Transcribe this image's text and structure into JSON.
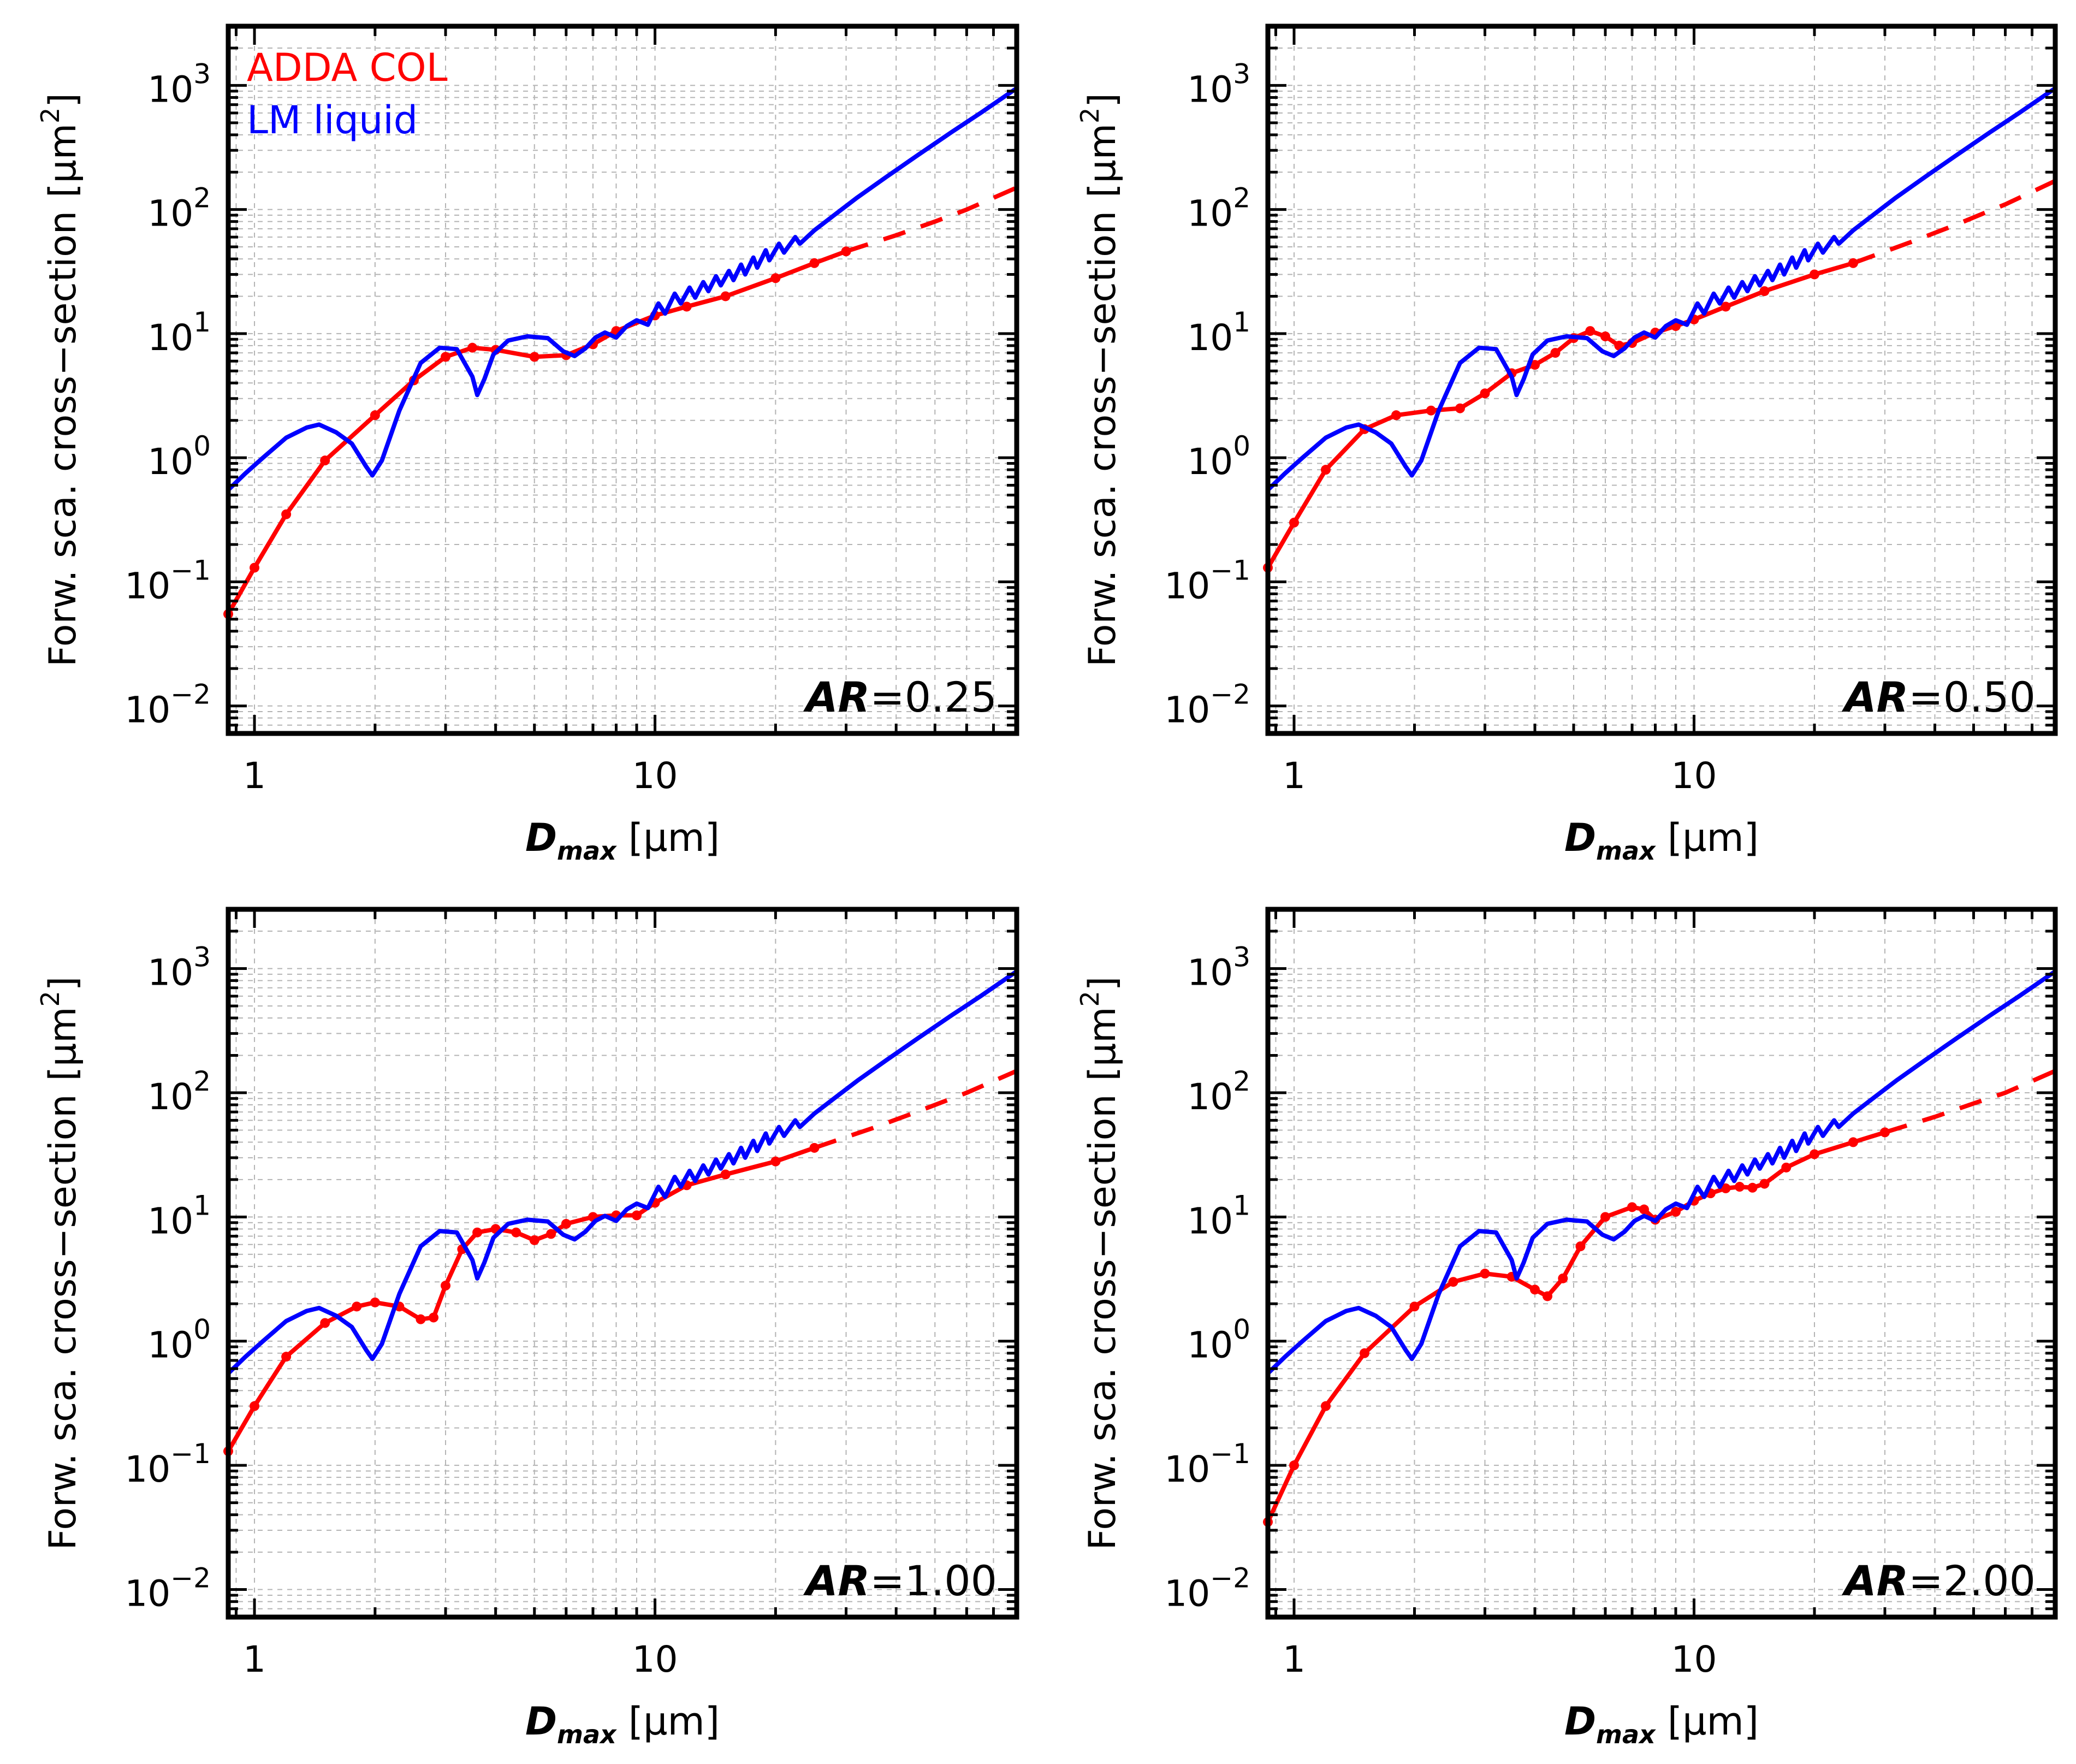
{
  "figure": {
    "legend": [
      {
        "label": "ADDA COL",
        "color": "#ff0000"
      },
      {
        "label": "LM liquid",
        "color": "#0000ff"
      }
    ],
    "ylabel": "Forw. sca. cross−section",
    "ylabel_unit_open": "[",
    "ylabel_unit": "μm",
    "ylabel_unit_exp": "2",
    "ylabel_unit_close": "]",
    "xlabel_var": "D",
    "xlabel_sub": "max",
    "xlabel_unit": "[μm]",
    "ar_prefix": "AR",
    "colors": {
      "adda": "#ff0000",
      "lm": "#0000ff",
      "grid": "#b4b4b4",
      "axis": "#000000"
    }
  },
  "chart_data": [
    {
      "type": "line",
      "panel_label": "AR=0.25",
      "ar_value": "=0.25",
      "xscale": "log",
      "yscale": "log",
      "xlim": [
        0.86,
        80
      ],
      "ylim": [
        0.006,
        3000
      ],
      "xticks": [
        {
          "value": 1,
          "label": "1"
        },
        {
          "value": 10,
          "label": "10"
        }
      ],
      "yticks": [
        {
          "value": 0.01,
          "base": "10",
          "exp": "−2"
        },
        {
          "value": 0.1,
          "base": "10",
          "exp": "−1"
        },
        {
          "value": 1,
          "base": "10",
          "exp": "0"
        },
        {
          "value": 10,
          "base": "10",
          "exp": "1"
        },
        {
          "value": 100,
          "base": "10",
          "exp": "2"
        },
        {
          "value": 1000,
          "base": "10",
          "exp": "3"
        }
      ],
      "grid": true,
      "legend_position": "top-left",
      "series": [
        {
          "name": "ADDA COL",
          "style": "solid-with-markers",
          "x": [
            0.86,
            1.0,
            1.2,
            1.5,
            2.0,
            2.5,
            3.0,
            3.5,
            4.0,
            5.0,
            6.0,
            7.0,
            8.0,
            10,
            12,
            15,
            20,
            25,
            30
          ],
          "y": [
            0.055,
            0.13,
            0.35,
            0.95,
            2.2,
            4.2,
            6.5,
            7.7,
            7.4,
            6.5,
            6.7,
            8.2,
            10.5,
            14,
            16.5,
            20,
            28,
            37,
            46
          ]
        },
        {
          "name": "ADDA COL (extrapolated)",
          "style": "dashed",
          "x": [
            30,
            40,
            50,
            60,
            80
          ],
          "y": [
            46,
            62,
            80,
            100,
            150
          ]
        },
        {
          "name": "LM liquid",
          "style": "solid",
          "x": [
            0.86,
            0.95,
            1.05,
            1.2,
            1.35,
            1.45,
            1.6,
            1.75,
            1.9,
            1.97,
            2.08,
            2.3,
            2.6,
            2.9,
            3.2,
            3.5,
            3.6,
            3.75,
            3.95,
            4.3,
            4.8,
            5.4,
            5.9,
            6.3,
            6.7,
            7.1,
            7.5,
            8.0,
            8.5,
            9.0,
            9.6,
            10.2,
            10.6,
            11.2,
            11.6,
            12.2,
            12.6,
            13.2,
            13.6,
            14.2,
            14.6,
            15.3,
            15.7,
            16.4,
            16.8,
            17.6,
            18.0,
            18.9,
            19.3,
            20.4,
            21,
            22.4,
            23,
            25,
            28,
            32,
            38,
            45,
            55,
            65,
            80
          ],
          "y": [
            0.55,
            0.75,
            1.0,
            1.45,
            1.75,
            1.85,
            1.6,
            1.3,
            0.85,
            0.72,
            0.95,
            2.4,
            5.8,
            7.7,
            7.5,
            4.5,
            3.2,
            4.3,
            6.8,
            8.8,
            9.5,
            9.2,
            7.2,
            6.6,
            7.6,
            9.3,
            10.2,
            9.3,
            11.5,
            12.8,
            11.8,
            17.5,
            14.5,
            21,
            17.5,
            23.5,
            19.5,
            26,
            22,
            29,
            24.5,
            32,
            27,
            36,
            30,
            41,
            34,
            47,
            39,
            53,
            45,
            60,
            53,
            68,
            90,
            125,
            185,
            270,
            420,
            600,
            950
          ]
        }
      ]
    },
    {
      "type": "line",
      "panel_label": "AR=0.50",
      "ar_value": "=0.50",
      "xscale": "log",
      "yscale": "log",
      "xlim": [
        0.86,
        80
      ],
      "ylim": [
        0.006,
        3000
      ],
      "xticks": [
        {
          "value": 1,
          "label": "1"
        },
        {
          "value": 10,
          "label": "10"
        }
      ],
      "yticks": [
        {
          "value": 0.01,
          "base": "10",
          "exp": "−2"
        },
        {
          "value": 0.1,
          "base": "10",
          "exp": "−1"
        },
        {
          "value": 1,
          "base": "10",
          "exp": "0"
        },
        {
          "value": 10,
          "base": "10",
          "exp": "1"
        },
        {
          "value": 100,
          "base": "10",
          "exp": "2"
        },
        {
          "value": 1000,
          "base": "10",
          "exp": "3"
        }
      ],
      "grid": true,
      "legend_position": "none",
      "series": [
        {
          "name": "ADDA COL",
          "style": "solid-with-markers",
          "x": [
            0.86,
            1.0,
            1.2,
            1.5,
            1.8,
            2.2,
            2.6,
            3.0,
            3.5,
            4.0,
            4.5,
            5.0,
            5.5,
            6.0,
            6.5,
            7.0,
            8.0,
            9.0,
            10,
            12,
            15,
            20,
            25
          ],
          "y": [
            0.13,
            0.3,
            0.8,
            1.7,
            2.2,
            2.4,
            2.5,
            3.3,
            4.8,
            5.6,
            7.0,
            9.2,
            10.5,
            9.5,
            8.0,
            8.4,
            10.2,
            11.5,
            13,
            16.5,
            22,
            30,
            37
          ]
        },
        {
          "name": "ADDA COL (extrapolated)",
          "style": "dashed",
          "x": [
            25,
            35,
            45,
            60,
            80
          ],
          "y": [
            37,
            55,
            75,
            110,
            170
          ]
        },
        {
          "name": "LM liquid",
          "style": "solid",
          "x": [
            0.86,
            0.95,
            1.05,
            1.2,
            1.35,
            1.45,
            1.6,
            1.75,
            1.9,
            1.97,
            2.08,
            2.3,
            2.6,
            2.9,
            3.2,
            3.5,
            3.6,
            3.75,
            3.95,
            4.3,
            4.8,
            5.4,
            5.9,
            6.3,
            6.7,
            7.1,
            7.5,
            8.0,
            8.5,
            9.0,
            9.6,
            10.2,
            10.6,
            11.2,
            11.6,
            12.2,
            12.6,
            13.2,
            13.6,
            14.2,
            14.6,
            15.3,
            15.7,
            16.4,
            16.8,
            17.6,
            18.0,
            18.9,
            19.3,
            20.4,
            21,
            22.4,
            23,
            25,
            28,
            32,
            38,
            45,
            55,
            65,
            80
          ],
          "y": [
            0.55,
            0.75,
            1.0,
            1.45,
            1.75,
            1.85,
            1.6,
            1.3,
            0.85,
            0.72,
            0.95,
            2.4,
            5.8,
            7.7,
            7.5,
            4.5,
            3.2,
            4.3,
            6.8,
            8.8,
            9.5,
            9.2,
            7.2,
            6.6,
            7.6,
            9.3,
            10.2,
            9.3,
            11.5,
            12.8,
            11.8,
            17.5,
            14.5,
            21,
            17.5,
            23.5,
            19.5,
            26,
            22,
            29,
            24.5,
            32,
            27,
            36,
            30,
            41,
            34,
            47,
            39,
            53,
            45,
            60,
            53,
            68,
            90,
            125,
            185,
            270,
            420,
            600,
            950
          ]
        }
      ]
    },
    {
      "type": "line",
      "panel_label": "AR=1.00",
      "ar_value": "=1.00",
      "xscale": "log",
      "yscale": "log",
      "xlim": [
        0.86,
        80
      ],
      "ylim": [
        0.006,
        3000
      ],
      "xticks": [
        {
          "value": 1,
          "label": "1"
        },
        {
          "value": 10,
          "label": "10"
        }
      ],
      "yticks": [
        {
          "value": 0.01,
          "base": "10",
          "exp": "−2"
        },
        {
          "value": 0.1,
          "base": "10",
          "exp": "−1"
        },
        {
          "value": 1,
          "base": "10",
          "exp": "0"
        },
        {
          "value": 10,
          "base": "10",
          "exp": "1"
        },
        {
          "value": 100,
          "base": "10",
          "exp": "2"
        },
        {
          "value": 1000,
          "base": "10",
          "exp": "3"
        }
      ],
      "grid": true,
      "legend_position": "none",
      "series": [
        {
          "name": "ADDA COL",
          "style": "solid-with-markers",
          "x": [
            0.86,
            1.0,
            1.2,
            1.5,
            1.8,
            2.0,
            2.3,
            2.6,
            2.8,
            3.0,
            3.3,
            3.6,
            4.0,
            4.5,
            5.0,
            5.5,
            6.0,
            7.0,
            8.0,
            9.0,
            10,
            12,
            15,
            20,
            25
          ],
          "y": [
            0.13,
            0.3,
            0.75,
            1.4,
            1.9,
            2.05,
            1.9,
            1.5,
            1.55,
            2.8,
            5.5,
            7.5,
            8.0,
            7.5,
            6.5,
            7.3,
            8.8,
            10,
            10.3,
            10.3,
            13,
            18,
            22,
            28,
            36
          ]
        },
        {
          "name": "ADDA COL (extrapolated)",
          "style": "dashed",
          "x": [
            25,
            35,
            45,
            60,
            80
          ],
          "y": [
            36,
            52,
            70,
            100,
            150
          ]
        },
        {
          "name": "LM liquid",
          "style": "solid",
          "x": [
            0.86,
            0.95,
            1.05,
            1.2,
            1.35,
            1.45,
            1.6,
            1.75,
            1.9,
            1.97,
            2.08,
            2.3,
            2.6,
            2.9,
            3.2,
            3.5,
            3.6,
            3.75,
            3.95,
            4.3,
            4.8,
            5.4,
            5.9,
            6.3,
            6.7,
            7.1,
            7.5,
            8.0,
            8.5,
            9.0,
            9.6,
            10.2,
            10.6,
            11.2,
            11.6,
            12.2,
            12.6,
            13.2,
            13.6,
            14.2,
            14.6,
            15.3,
            15.7,
            16.4,
            16.8,
            17.6,
            18.0,
            18.9,
            19.3,
            20.4,
            21,
            22.4,
            23,
            25,
            28,
            32,
            38,
            45,
            55,
            65,
            80
          ],
          "y": [
            0.55,
            0.75,
            1.0,
            1.45,
            1.75,
            1.85,
            1.6,
            1.3,
            0.85,
            0.72,
            0.95,
            2.4,
            5.8,
            7.7,
            7.5,
            4.5,
            3.2,
            4.3,
            6.8,
            8.8,
            9.5,
            9.2,
            7.2,
            6.6,
            7.6,
            9.3,
            10.2,
            9.3,
            11.5,
            12.8,
            11.8,
            17.5,
            14.5,
            21,
            17.5,
            23.5,
            19.5,
            26,
            22,
            29,
            24.5,
            32,
            27,
            36,
            30,
            41,
            34,
            47,
            39,
            53,
            45,
            60,
            53,
            68,
            90,
            125,
            185,
            270,
            420,
            600,
            950
          ]
        }
      ]
    },
    {
      "type": "line",
      "panel_label": "AR=2.00",
      "ar_value": "=2.00",
      "xscale": "log",
      "yscale": "log",
      "xlim": [
        0.86,
        80
      ],
      "ylim": [
        0.006,
        3000
      ],
      "xticks": [
        {
          "value": 1,
          "label": "1"
        },
        {
          "value": 10,
          "label": "10"
        }
      ],
      "yticks": [
        {
          "value": 0.01,
          "base": "10",
          "exp": "−2"
        },
        {
          "value": 0.1,
          "base": "10",
          "exp": "−1"
        },
        {
          "value": 1,
          "base": "10",
          "exp": "0"
        },
        {
          "value": 10,
          "base": "10",
          "exp": "1"
        },
        {
          "value": 100,
          "base": "10",
          "exp": "2"
        },
        {
          "value": 1000,
          "base": "10",
          "exp": "3"
        }
      ],
      "grid": true,
      "legend_position": "none",
      "series": [
        {
          "name": "ADDA COL",
          "style": "solid-with-markers",
          "x": [
            0.86,
            1.0,
            1.2,
            1.5,
            2.0,
            2.5,
            3.0,
            3.5,
            4.0,
            4.3,
            4.7,
            5.2,
            6.0,
            7.0,
            7.5,
            8.0,
            9.0,
            10,
            11,
            12,
            13,
            14,
            15,
            17,
            20,
            25,
            30
          ],
          "y": [
            0.035,
            0.1,
            0.3,
            0.8,
            1.9,
            3.0,
            3.5,
            3.3,
            2.6,
            2.3,
            3.2,
            5.8,
            10,
            12,
            11.5,
            9.5,
            11,
            13.5,
            15.5,
            17,
            17.5,
            17.2,
            18.5,
            25,
            32,
            40,
            48
          ]
        },
        {
          "name": "ADDA COL (extrapolated)",
          "style": "dashed",
          "x": [
            30,
            40,
            50,
            60,
            80
          ],
          "y": [
            48,
            64,
            82,
            100,
            150
          ]
        },
        {
          "name": "LM liquid",
          "style": "solid",
          "x": [
            0.86,
            0.95,
            1.05,
            1.2,
            1.35,
            1.45,
            1.6,
            1.75,
            1.9,
            1.97,
            2.08,
            2.3,
            2.6,
            2.9,
            3.2,
            3.5,
            3.6,
            3.75,
            3.95,
            4.3,
            4.8,
            5.4,
            5.9,
            6.3,
            6.7,
            7.1,
            7.5,
            8.0,
            8.5,
            9.0,
            9.6,
            10.2,
            10.6,
            11.2,
            11.6,
            12.2,
            12.6,
            13.2,
            13.6,
            14.2,
            14.6,
            15.3,
            15.7,
            16.4,
            16.8,
            17.6,
            18.0,
            18.9,
            19.3,
            20.4,
            21,
            22.4,
            23,
            25,
            28,
            32,
            38,
            45,
            55,
            65,
            80
          ],
          "y": [
            0.55,
            0.75,
            1.0,
            1.45,
            1.75,
            1.85,
            1.6,
            1.3,
            0.85,
            0.72,
            0.95,
            2.4,
            5.8,
            7.7,
            7.5,
            4.5,
            3.2,
            4.3,
            6.8,
            8.8,
            9.5,
            9.2,
            7.2,
            6.6,
            7.6,
            9.3,
            10.2,
            9.3,
            11.5,
            12.8,
            11.8,
            17.5,
            14.5,
            21,
            17.5,
            23.5,
            19.5,
            26,
            22,
            29,
            24.5,
            32,
            27,
            36,
            30,
            41,
            34,
            47,
            39,
            53,
            45,
            60,
            53,
            68,
            90,
            125,
            185,
            270,
            420,
            600,
            950
          ]
        }
      ]
    }
  ]
}
